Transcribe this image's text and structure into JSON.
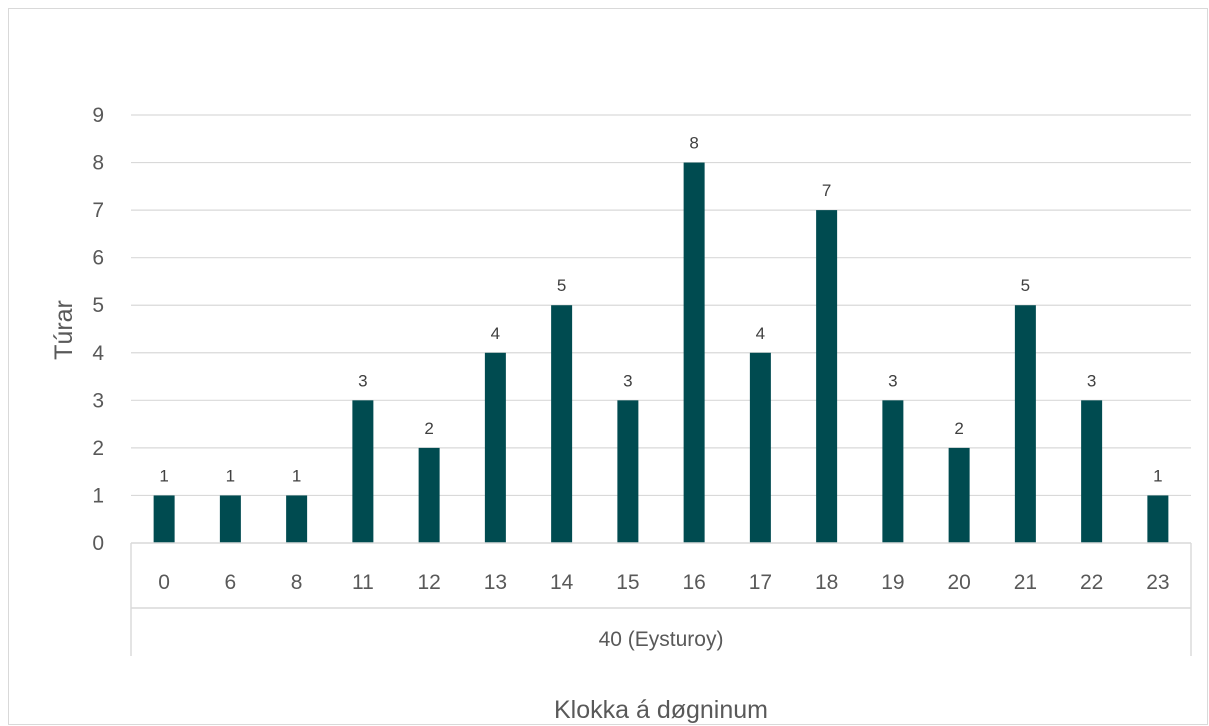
{
  "chart_data": {
    "type": "bar",
    "categories": [
      "0",
      "6",
      "8",
      "11",
      "12",
      "13",
      "14",
      "15",
      "16",
      "17",
      "18",
      "19",
      "20",
      "21",
      "22",
      "23"
    ],
    "group_label": "40 (Eysturoy)",
    "values": [
      1,
      1,
      1,
      3,
      2,
      4,
      5,
      3,
      8,
      4,
      7,
      3,
      2,
      5,
      3,
      1
    ],
    "xlabel": "Klokka á døgninum",
    "ylabel": "Túrar",
    "ylim": [
      0,
      9
    ],
    "yticks": [
      0,
      1,
      2,
      3,
      4,
      5,
      6,
      7,
      8,
      9
    ],
    "grid": true,
    "data_labels": true,
    "colors": {
      "bar": "#004b50",
      "grid": "#d9d9d9",
      "axis": "#d9d9d9"
    }
  }
}
